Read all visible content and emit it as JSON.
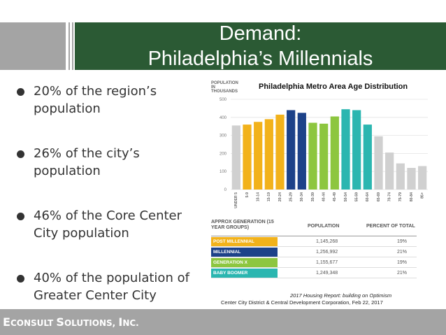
{
  "slide": {
    "title_line1": "Demand:",
    "title_line2": "Philadelphia’s Millennials"
  },
  "bullets": [
    "20% of the region’s population",
    "26% of the city’s population",
    "46% of the Core Center City population",
    "40% of the population of Greater Center City"
  ],
  "chart": {
    "y_label": "POPULATION IN THOUSANDS",
    "title": "Philadelphia Metro Area Age Distribution"
  },
  "chart_data": {
    "type": "bar",
    "title": "Philadelphia Metro Area Age Distribution",
    "ylabel": "POPULATION IN THOUSANDS",
    "ylim": [
      0,
      500
    ],
    "yticks": [
      "0",
      "100",
      "200",
      "300",
      "400",
      "500"
    ],
    "grid": true,
    "categories": [
      "UNDER 5",
      "5-9",
      "10-14",
      "15-19",
      "20-24",
      "25-29",
      "30-34",
      "35-39",
      "40-44",
      "45-49",
      "50-54",
      "55-59",
      "60-64",
      "65-69",
      "70-74",
      "75-79",
      "80-84",
      "85+"
    ],
    "values": [
      355,
      360,
      375,
      390,
      415,
      440,
      425,
      370,
      365,
      405,
      445,
      440,
      360,
      295,
      205,
      145,
      120,
      130
    ],
    "colors": [
      "#d0d0d0",
      "#f2b21b",
      "#f2b21b",
      "#f2b21b",
      "#f2b21b",
      "#1d4289",
      "#1d4289",
      "#8dc63f",
      "#8dc63f",
      "#8dc63f",
      "#2bb6b0",
      "#2bb6b0",
      "#2bb6b0",
      "#d0d0d0",
      "#d0d0d0",
      "#d0d0d0",
      "#d0d0d0",
      "#d0d0d0"
    ]
  },
  "table": {
    "headers": {
      "generation": "APPROX GENERATION (15 YEAR GROUPS)",
      "population": "POPULATION",
      "percent": "PERCENT OF TOTAL"
    },
    "rows": [
      {
        "generation": "POST MILLENNIAL",
        "population": "1,145,268",
        "percent": "19%",
        "color": "#f2b21b"
      },
      {
        "generation": "MILLENNIAL",
        "population": "1,256,992",
        "percent": "21%",
        "color": "#1d4289"
      },
      {
        "generation": "GENERATION X",
        "population": "1,155,677",
        "percent": "19%",
        "color": "#8dc63f"
      },
      {
        "generation": "BABY BOOMER",
        "population": "1,249,348",
        "percent": "21%",
        "color": "#2bb6b0"
      }
    ]
  },
  "source": {
    "line1": "2017 Housing Report: building on Optimism",
    "line2": "Center City District & Central Development Corporation, Feb 22, 2017"
  },
  "footer": {
    "e": "E",
    "consult": "CONSULT ",
    "s": "S",
    "olutions": "OLUTIONS, ",
    "i": "I",
    "nc": "NC."
  }
}
